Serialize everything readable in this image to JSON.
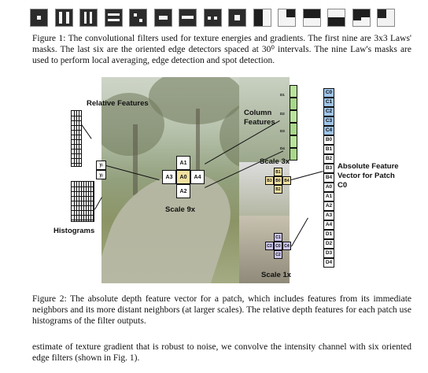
{
  "filters": {
    "count": 15,
    "items": [
      {
        "icon": "filter-laws-1-icon"
      },
      {
        "icon": "filter-laws-2-icon"
      },
      {
        "icon": "filter-laws-3-icon"
      },
      {
        "icon": "filter-laws-4-icon"
      },
      {
        "icon": "filter-laws-5-icon"
      },
      {
        "icon": "filter-laws-6-icon"
      },
      {
        "icon": "filter-laws-7-icon"
      },
      {
        "icon": "filter-laws-8-icon"
      },
      {
        "icon": "filter-laws-9-icon"
      },
      {
        "icon": "edge-filter-1-icon"
      },
      {
        "icon": "edge-filter-2-icon"
      },
      {
        "icon": "edge-filter-3-icon"
      },
      {
        "icon": "edge-filter-4-icon"
      },
      {
        "icon": "edge-filter-5-icon"
      },
      {
        "icon": "edge-filter-6-icon"
      }
    ]
  },
  "caption1": "Figure 1: The convolutional filters used for texture energies and gradients. The first nine are 3x3 Laws' masks. The last six are the oriented edge detectors spaced at 30⁰ intervals. The nine Law's masks are used to perform local averaging, edge detection and spot detection.",
  "figure2": {
    "relative_features": "Relative Features",
    "histograms": "Histograms",
    "y_labels": [
      "yᵢ",
      "yⱼ"
    ],
    "scale9": {
      "label": "Scale 9x",
      "top": "A1",
      "left": "A3",
      "center": "A0",
      "right": "A4",
      "bottom": "A2"
    },
    "column_features": "Column Features",
    "column_tags": [
      "D1",
      "D2",
      "D3",
      "D4"
    ],
    "scale3": {
      "label": "Scale 3x",
      "top": "B1",
      "left": "B3",
      "center": "B0",
      "right": "B4",
      "bottom": "B2"
    },
    "scale1": {
      "label": "Scale 1x",
      "top": "C1",
      "left": "C3",
      "center": "C0",
      "right": "C4",
      "bottom": "C2"
    },
    "absolute": "Absolute Feature Vector for Patch C0",
    "vector": [
      "C0",
      "C1",
      "C2",
      "C3",
      "C4",
      "B0",
      "B1",
      "B2",
      "B3",
      "B4",
      "A0",
      "A1",
      "A2",
      "A3",
      "A4",
      "D1",
      "D2",
      "D3",
      "D4"
    ],
    "vector_colors": {
      "C": "#9fc4e8",
      "B": "#ffffff",
      "A": "#ffffff",
      "D": "#ffffff"
    }
  },
  "caption2": "Figure 2: The absolute depth feature vector for a patch, which includes features from its immediate neighbors and its more distant neighbors (at larger scales). The relative depth features for each patch use histograms of the filter outputs.",
  "body_text": "estimate of texture gradient that is robust to noise, we convolve the intensity channel with six oriented edge filters (shown in Fig. 1)."
}
